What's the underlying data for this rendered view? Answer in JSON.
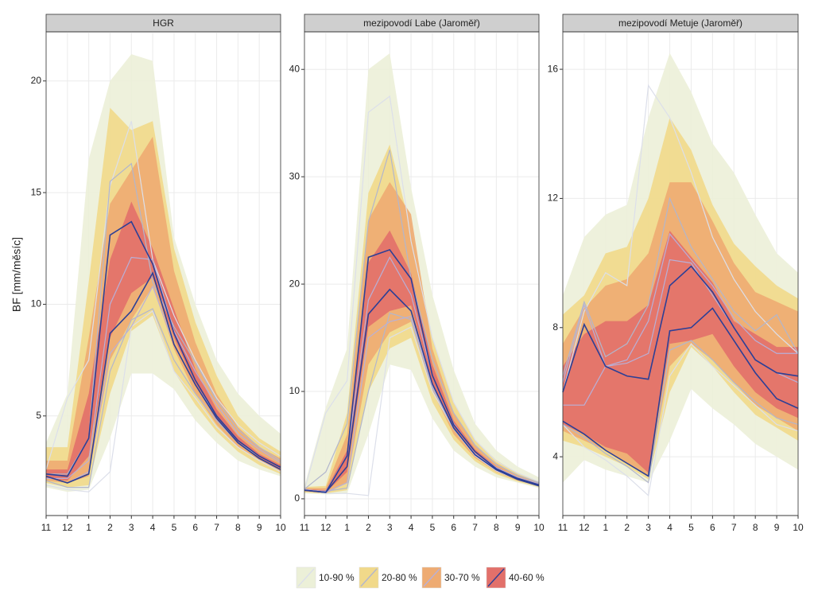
{
  "y_label": "BF [mm/měsíc]",
  "legend": [
    {
      "name": "10-90 %",
      "color": "#ecf0d8",
      "line_color": "#dcdfea"
    },
    {
      "name": "20-80 %",
      "color": "#f1d98a",
      "line_color": "#b2b6cc"
    },
    {
      "name": "30-70 %",
      "color": "#eeab72",
      "line_color": "#b8b0d8"
    },
    {
      "name": "40-60 %",
      "color": "#e2706a",
      "line_color": "#2c3f96"
    }
  ],
  "chart_data": [
    {
      "type": "band",
      "title": "HGR",
      "categories": [
        "11",
        "12",
        "1",
        "2",
        "3",
        "4",
        "5",
        "6",
        "7",
        "8",
        "9",
        "10"
      ],
      "ylim": [
        0.54,
        22.2
      ],
      "yticks": [
        5,
        10,
        15,
        20
      ],
      "grid": true,
      "series": [
        {
          "lower": [
            1.8,
            1.6,
            1.7,
            4,
            6.9,
            6.9,
            6.2,
            4.8,
            3.8,
            3.0,
            2.6,
            2.3
          ],
          "upper": [
            3.8,
            6,
            16.5,
            20,
            21.2,
            20.9,
            13,
            10,
            7.5,
            6,
            5,
            4.2
          ],
          "lines": [
            [
              1.9,
              1.7,
              1.6,
              2.5,
              9,
              9.7,
              7,
              5.8,
              4.5,
              3.6,
              3,
              2.5
            ],
            [
              2.6,
              5.8,
              7.5,
              15.3,
              18.2,
              12,
              9.5,
              7.5,
              5.8,
              4.6,
              3.8,
              3.2
            ]
          ]
        },
        {
          "lower": [
            2.0,
            1.8,
            1.9,
            6,
            8.8,
            9.5,
            7,
            5.5,
            4.3,
            3.4,
            2.8,
            2.4
          ],
          "upper": [
            3.6,
            3.6,
            11,
            18.8,
            17.8,
            18.2,
            12.5,
            9.2,
            6.8,
            5,
            4,
            3.4
          ],
          "lines": [
            [
              2.1,
              1.8,
              1.8,
              7,
              9.3,
              9.8,
              7.5,
              6,
              4.8,
              3.8,
              3.2,
              2.7
            ],
            [
              2.4,
              2.4,
              4,
              15.5,
              16.3,
              11,
              9,
              7.4,
              5.7,
              4.4,
              3.6,
              3.0
            ]
          ]
        },
        {
          "lower": [
            2.1,
            2.0,
            2.3,
            7.5,
            9.3,
            10.8,
            8,
            6,
            4.6,
            3.6,
            3,
            2.5
          ],
          "upper": [
            3.0,
            3.0,
            8.5,
            14.5,
            16,
            17.5,
            11.5,
            8.3,
            6,
            4.5,
            3.6,
            3.1
          ],
          "lines": [
            [
              2.2,
              2.2,
              3,
              10,
              12.1,
              12,
              8.8,
              7,
              5.5,
              4.2,
              3.5,
              2.9
            ],
            [
              2.3,
              2.0,
              2.5,
              7.8,
              9,
              10.8,
              8.2,
              6.4,
              5,
              3.9,
              3.2,
              2.7
            ]
          ]
        },
        {
          "lower": [
            2.2,
            2.1,
            3.2,
            8.5,
            10.5,
            11.2,
            8.5,
            6.4,
            4.8,
            3.8,
            3.1,
            2.6
          ],
          "upper": [
            2.6,
            2.6,
            6,
            12,
            14.6,
            12.5,
            9.8,
            7.1,
            5.3,
            4.1,
            3.3,
            2.8
          ],
          "lines": [
            [
              2.4,
              2.3,
              4,
              13.1,
              13.7,
              11.8,
              8.7,
              6.6,
              5,
              3.9,
              3.2,
              2.7
            ],
            [
              2.3,
              2.0,
              2.4,
              8.7,
              9.7,
              11.4,
              8.2,
              6.4,
              4.9,
              3.8,
              3.1,
              2.6
            ]
          ]
        }
      ]
    },
    {
      "type": "band",
      "title": "mezipovodí Labe (Jaroměř)",
      "categories": [
        "11",
        "12",
        "1",
        "2",
        "3",
        "4",
        "5",
        "6",
        "7",
        "8",
        "9",
        "10"
      ],
      "ylim": [
        -1.56,
        43.5
      ],
      "yticks": [
        0,
        10,
        20,
        30,
        40
      ],
      "grid": true,
      "series": [
        {
          "lower": [
            0.5,
            0.4,
            0.5,
            6,
            12.5,
            12,
            7.5,
            4.5,
            3,
            2,
            1.5,
            1
          ],
          "upper": [
            1.2,
            8.5,
            14,
            40,
            41.5,
            29,
            19,
            12,
            7,
            4.5,
            3,
            2
          ],
          "lines": [
            [
              0.9,
              0.5,
              0.5,
              0.3,
              15,
              16,
              10,
              6.5,
              4,
              2.6,
              1.8,
              1.2
            ],
            [
              0.8,
              8,
              11,
              36,
              37.5,
              24,
              15,
              9,
              5.5,
              3.5,
              2.4,
              1.6
            ]
          ]
        },
        {
          "lower": [
            0.6,
            0.5,
            0.8,
            10,
            14,
            15,
            9,
            5.5,
            3.5,
            2.3,
            1.6,
            1.1
          ],
          "upper": [
            1.1,
            1.2,
            8,
            28.5,
            33,
            25,
            15,
            9,
            5.5,
            3.6,
            2.4,
            1.6
          ],
          "lines": [
            [
              0.9,
              2.5,
              7,
              25.8,
              32.5,
              20.5,
              13,
              8,
              5,
              3.2,
              2.2,
              1.5
            ],
            [
              0.8,
              0.7,
              1,
              10,
              17.3,
              16.7,
              10.3,
              6.5,
              4.1,
              2.7,
              1.8,
              1.3
            ]
          ]
        },
        {
          "lower": [
            0.7,
            0.5,
            1.5,
            12.5,
            15.5,
            16.5,
            10,
            6,
            3.8,
            2.5,
            1.7,
            1.2
          ],
          "upper": [
            1.0,
            1.0,
            6,
            26,
            29.5,
            26.5,
            14,
            8,
            5,
            3.3,
            2.2,
            1.5
          ],
          "lines": [
            [
              0.8,
              0.7,
              4,
              18.5,
              22.5,
              19,
              11.5,
              7,
              4.4,
              2.9,
              2,
              1.4
            ],
            [
              0.9,
              0.6,
              1.5,
              15,
              16.5,
              17,
              10.5,
              6.6,
              4.2,
              2.7,
              1.9,
              1.3
            ]
          ]
        },
        {
          "lower": [
            0.8,
            0.6,
            2.5,
            16,
            17.5,
            18,
            10.8,
            6.5,
            4,
            2.6,
            1.8,
            1.2
          ],
          "upper": [
            0.9,
            0.8,
            4.5,
            22,
            25,
            21,
            12.5,
            7.3,
            4.6,
            3,
            2,
            1.4
          ],
          "lines": [
            [
              0.8,
              0.6,
              4,
              22.5,
              23.2,
              20.5,
              11.5,
              6.9,
              4.4,
              2.8,
              1.9,
              1.3
            ],
            [
              0.8,
              0.6,
              3,
              17.2,
              19.5,
              17.5,
              10.7,
              6.6,
              4.1,
              2.7,
              1.8,
              1.2
            ]
          ]
        }
      ]
    },
    {
      "type": "band",
      "title": "mezipovodí Metuje (Jaroměř)",
      "categories": [
        "11",
        "12",
        "1",
        "2",
        "3",
        "4",
        "5",
        "6",
        "7",
        "8",
        "9",
        "10"
      ],
      "ylim": [
        2.18,
        17.16
      ],
      "yticks": [
        4,
        8,
        12,
        16
      ],
      "grid": true,
      "series": [
        {
          "lower": [
            3.2,
            3.9,
            3.6,
            3.4,
            3.2,
            4.5,
            6.1,
            5.5,
            5,
            4.4,
            4,
            3.6
          ],
          "upper": [
            9,
            10.8,
            11.5,
            11.8,
            14.5,
            16.5,
            15.3,
            13.7,
            12.8,
            11.5,
            10.3,
            9.7
          ],
          "lines": [
            [
              5,
              4.3,
              3.9,
              3.4,
              2.8,
              6.5,
              7.5,
              6.8,
              6.2,
              5.6,
              5,
              4.8
            ],
            [
              6,
              8.5,
              9.7,
              9.3,
              15.5,
              14.5,
              12.8,
              10.8,
              9.5,
              8.5,
              7.8,
              7.2
            ]
          ]
        },
        {
          "lower": [
            4.5,
            4.3,
            4,
            3.7,
            3.3,
            6,
            7.4,
            6.8,
            6,
            5.3,
            4.9,
            4.5
          ],
          "upper": [
            8.4,
            9,
            10.3,
            10.5,
            12,
            14.5,
            13.5,
            11.8,
            10.6,
            9.9,
            9.3,
            8.9
          ],
          "lines": [
            [
              5,
              4.6,
              4.1,
              3.7,
              3.2,
              7.3,
              7.6,
              7,
              6.3,
              5.7,
              5.2,
              5
            ],
            [
              6.5,
              8.8,
              7.1,
              7.5,
              8.7,
              12,
              10.5,
              9.5,
              8.5,
              7.9,
              8.4,
              7.2
            ]
          ]
        },
        {
          "lower": [
            4.8,
            4.5,
            4.2,
            3.8,
            3.4,
            6.8,
            7.5,
            7,
            6.3,
            5.6,
            5.2,
            4.8
          ],
          "upper": [
            7.5,
            8.6,
            9.3,
            9.5,
            10.3,
            12.5,
            12.5,
            11.3,
            10,
            9.1,
            8.8,
            8.5
          ],
          "lines": [
            [
              5.6,
              5.6,
              6.8,
              6.9,
              7.2,
              10.1,
              10,
              9,
              8,
              7,
              6.6,
              6.3
            ],
            [
              6.3,
              8.7,
              6.8,
              7,
              8.2,
              10.9,
              10.1,
              9.3,
              8.3,
              7.6,
              7.2,
              7.2
            ]
          ]
        },
        {
          "lower": [
            5,
            4.7,
            4.3,
            4.1,
            3.5,
            7.5,
            7.6,
            7.8,
            6.8,
            6,
            5.5,
            5.2
          ],
          "upper": [
            6.8,
            7.8,
            8.2,
            8.2,
            8.7,
            11,
            10.2,
            9.4,
            8.2,
            7.8,
            7.4,
            7.4
          ],
          "lines": [
            [
              6,
              8.1,
              6.8,
              6.5,
              6.4,
              9.3,
              9.9,
              9.1,
              8,
              7,
              6.6,
              6.5
            ],
            [
              5.1,
              4.7,
              4.2,
              3.8,
              3.4,
              7.9,
              8,
              8.6,
              7.6,
              6.6,
              5.8,
              5.5
            ]
          ]
        }
      ]
    }
  ]
}
